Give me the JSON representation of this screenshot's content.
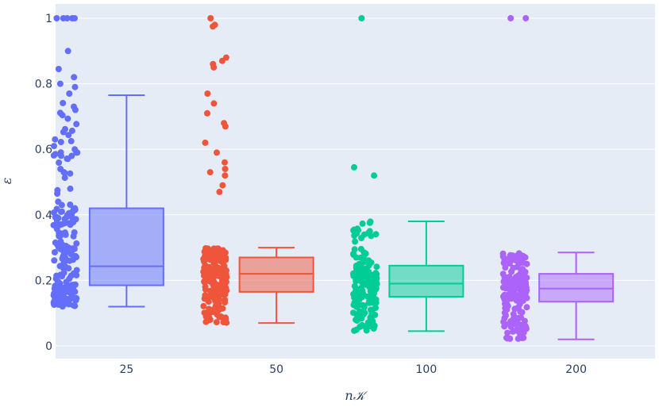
{
  "chart_data": {
    "type": "box",
    "title": "",
    "xlabel": "n𝒦",
    "ylabel": "ε",
    "ylim": [
      -0.05,
      1.03
    ],
    "yticks": [
      0,
      0.2,
      0.4,
      0.6,
      0.8,
      1
    ],
    "ytick_labels": [
      "0",
      "0.2",
      "0.4",
      "0.6",
      "0.8",
      "1"
    ],
    "grid": true,
    "legend": "none",
    "categories": [
      "25",
      "50",
      "100",
      "200"
    ],
    "series": [
      {
        "category": "25",
        "color": "#636efa",
        "whisker_low": 0.12,
        "q1": 0.185,
        "median": 0.243,
        "q3": 0.42,
        "whisker_high": 0.765,
        "points_range": [
          0.12,
          1.0
        ],
        "outliers": [
          1.0,
          1.0,
          1.0,
          1.0,
          1.0,
          0.9,
          0.845,
          0.82,
          0.8,
          0.79,
          0.77,
          0.73,
          0.625,
          0.61,
          0.6,
          0.59,
          0.58,
          0.54,
          0.475,
          0.465,
          0.44,
          0.43,
          0.42,
          0.41,
          0.37,
          0.345,
          0.335,
          0.3,
          0.29
        ]
      },
      {
        "category": "50",
        "color": "#ef553b",
        "whisker_low": 0.07,
        "q1": 0.165,
        "median": 0.22,
        "q3": 0.27,
        "whisker_high": 0.3,
        "points_range": [
          0.07,
          1.0
        ],
        "outliers": [
          1.0,
          0.98,
          0.975,
          0.88,
          0.87,
          0.86,
          0.85,
          0.77,
          0.74,
          0.71,
          0.68,
          0.67,
          0.62,
          0.59,
          0.56,
          0.54,
          0.53,
          0.52,
          0.49,
          0.47
        ]
      },
      {
        "category": "100",
        "color": "#00cc96",
        "whisker_low": 0.045,
        "q1": 0.15,
        "median": 0.19,
        "q3": 0.245,
        "whisker_high": 0.38,
        "points_range": [
          0.045,
          1.0
        ],
        "outliers": [
          1.0,
          0.545,
          0.52
        ]
      },
      {
        "category": "200",
        "color": "#ab63fa",
        "whisker_low": 0.02,
        "q1": 0.135,
        "median": 0.175,
        "q3": 0.22,
        "whisker_high": 0.285,
        "points_range": [
          0.02,
          1.0
        ],
        "outliers": [
          1.0,
          1.0
        ]
      }
    ]
  }
}
